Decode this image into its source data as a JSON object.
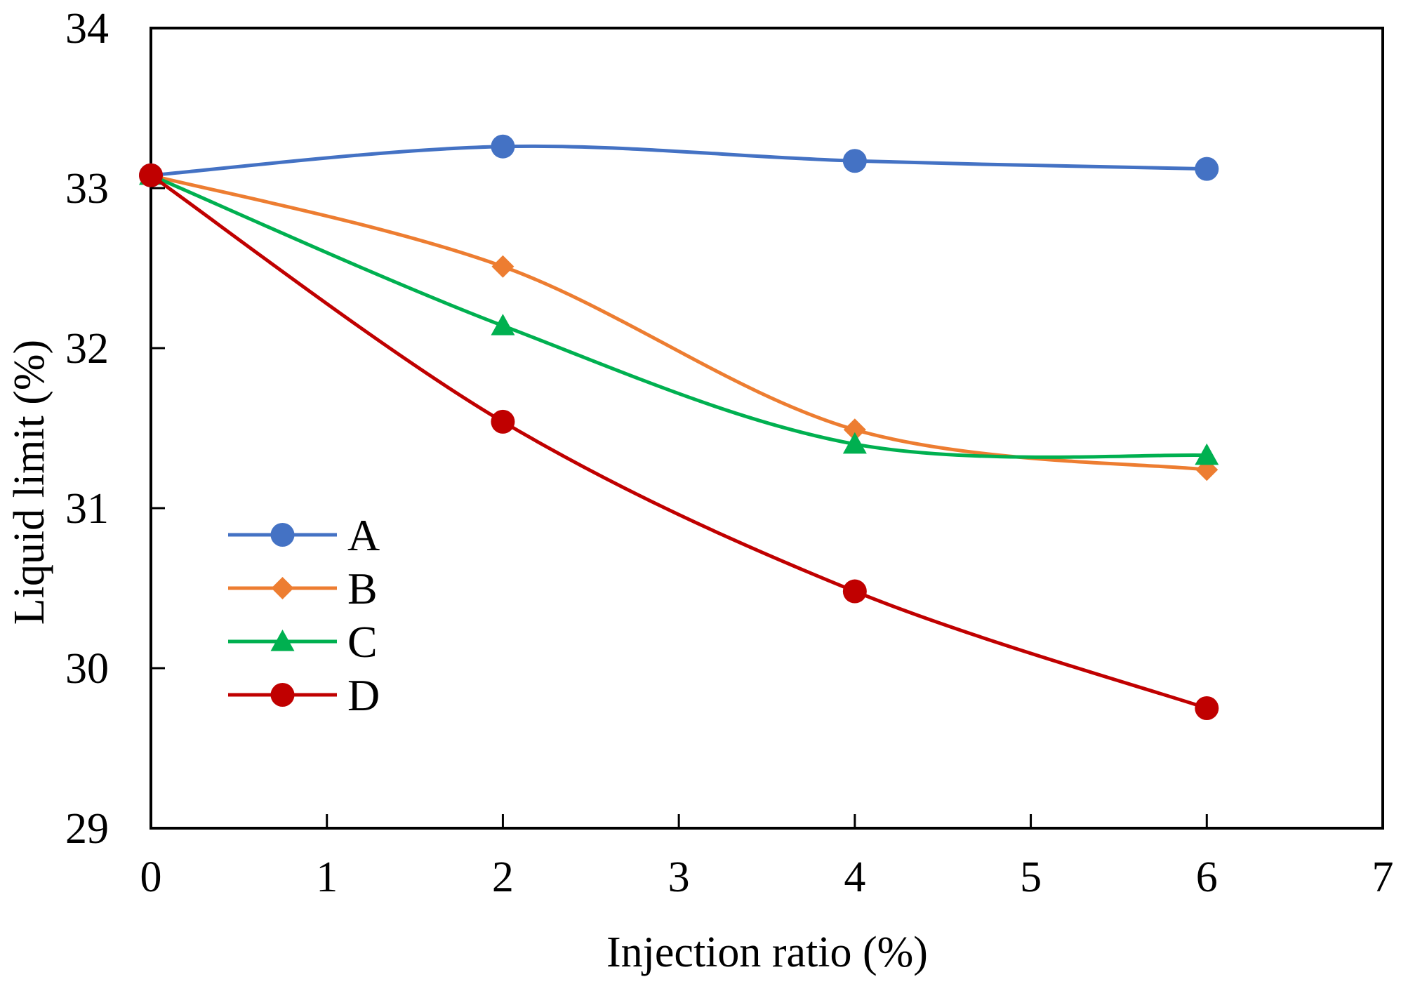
{
  "chart_data": {
    "type": "line",
    "title": "",
    "xlabel": "Injection ratio (%)",
    "ylabel": "Liquid limit (%)",
    "xlim": [
      0,
      7
    ],
    "ylim": [
      29,
      34
    ],
    "xticks": [
      0,
      1,
      2,
      3,
      4,
      5,
      6,
      7
    ],
    "yticks": [
      29,
      30,
      31,
      32,
      33,
      34
    ],
    "grid": false,
    "legend_position": "left-center",
    "series": [
      {
        "name": "A",
        "color": "#4472C4",
        "marker": "circle",
        "x": [
          0,
          2,
          4,
          6
        ],
        "y": [
          33.08,
          33.26,
          33.17,
          33.12
        ]
      },
      {
        "name": "B",
        "color": "#ED7D31",
        "marker": "diamond",
        "x": [
          0,
          2,
          4,
          6
        ],
        "y": [
          33.08,
          32.51,
          31.49,
          31.24
        ]
      },
      {
        "name": "C",
        "color": "#00B050",
        "marker": "triangle",
        "x": [
          0,
          2,
          4,
          6
        ],
        "y": [
          33.08,
          32.14,
          31.4,
          31.33
        ]
      },
      {
        "name": "D",
        "color": "#C00000",
        "marker": "circle",
        "x": [
          0,
          2,
          4,
          6
        ],
        "y": [
          33.08,
          31.54,
          30.48,
          29.75
        ]
      }
    ]
  }
}
